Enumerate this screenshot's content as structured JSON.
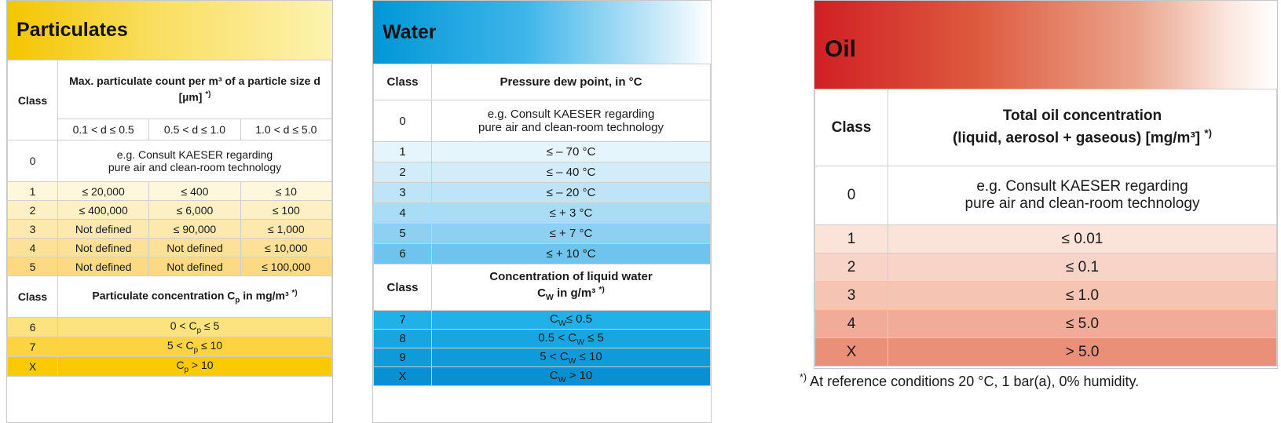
{
  "particulates": {
    "title": "Particulates",
    "class_label": "Class",
    "count_header_main": "Max. particulate count per m³ of a particle size d [µm]",
    "count_header_note": "*)",
    "size_ranges": [
      "0.1 < d ≤ 0.5",
      "0.5 < d ≤ 1.0",
      "1.0 < d ≤ 5.0"
    ],
    "class0": {
      "class": "0",
      "text_line1": "e.g. Consult KAESER regarding",
      "text_line2": "pure air and clean-room technology"
    },
    "rows": [
      {
        "class": "1",
        "a": "≤ 20,000",
        "b": "≤ 400",
        "c": "≤ 10"
      },
      {
        "class": "2",
        "a": "≤ 400,000",
        "b": "≤ 6,000",
        "c": "≤ 100"
      },
      {
        "class": "3",
        "a": "Not defined",
        "b": "≤ 90,000",
        "c": "≤ 1,000"
      },
      {
        "class": "4",
        "a": "Not defined",
        "b": "Not defined",
        "c": "≤ 10,000"
      },
      {
        "class": "5",
        "a": "Not defined",
        "b": "Not defined",
        "c": "≤ 100,000"
      }
    ],
    "conc_header_main": "Particulate concentration C",
    "conc_header_sub": "p",
    "conc_header_unit": " in mg/m³",
    "conc_header_note": "*)",
    "conc_rows": [
      {
        "class": "6",
        "pre": "0 < C",
        "sub": "p",
        "post": " ≤ 5"
      },
      {
        "class": "7",
        "pre": "5 < C",
        "sub": "p",
        "post": " ≤ 10"
      },
      {
        "class": "X",
        "pre": "C",
        "sub": "p",
        "post": " > 10"
      }
    ]
  },
  "water": {
    "title": "Water",
    "class_label": "Class",
    "dew_header": "Pressure dew point, in °C",
    "class0": {
      "class": "0",
      "text_line1": "e.g. Consult KAESER regarding",
      "text_line2": "pure air and clean-room technology"
    },
    "dew_rows": [
      {
        "class": "1",
        "value": "≤ – 70 °C"
      },
      {
        "class": "2",
        "value": "≤ – 40 °C"
      },
      {
        "class": "3",
        "value": "≤ – 20 °C"
      },
      {
        "class": "4",
        "value": "≤ + 3 °C"
      },
      {
        "class": "5",
        "value": "≤ + 7 °C"
      },
      {
        "class": "6",
        "value": "≤ + 10 °C"
      }
    ],
    "liquid_header_line1": "Concentration of liquid water",
    "liquid_header_c": "C",
    "liquid_header_sub": "W",
    "liquid_header_unit": " in g/m³",
    "liquid_header_note": "*)",
    "liquid_rows": [
      {
        "class": "7",
        "pre": "C",
        "sub": "W",
        "post": "≤ 0.5"
      },
      {
        "class": "8",
        "pre": "0.5 < C",
        "sub": "W",
        "post": " ≤ 5"
      },
      {
        "class": "9",
        "pre": "5 < C",
        "sub": "W",
        "post": " ≤ 10"
      },
      {
        "class": "X",
        "pre": "C",
        "sub": "W",
        "post": " > 10"
      }
    ]
  },
  "oil": {
    "title": "Oil",
    "class_label": "Class",
    "header_line1": "Total oil concentration",
    "header_line2": "(liquid, aerosol + gaseous) [mg/m³]",
    "header_note": "*)",
    "class0": {
      "class": "0",
      "text_line1": "e.g. Consult KAESER regarding",
      "text_line2": "pure air and clean-room technology"
    },
    "rows": [
      {
        "class": "1",
        "value": "≤ 0.01"
      },
      {
        "class": "2",
        "value": "≤ 0.1"
      },
      {
        "class": "3",
        "value": "≤ 1.0"
      },
      {
        "class": "4",
        "value": "≤ 5.0"
      },
      {
        "class": "X",
        "value": "> 5.0"
      }
    ]
  },
  "footnote": {
    "mark": "*)",
    "text": " At reference conditions 20 °C, 1 bar(a), 0% humidity."
  }
}
